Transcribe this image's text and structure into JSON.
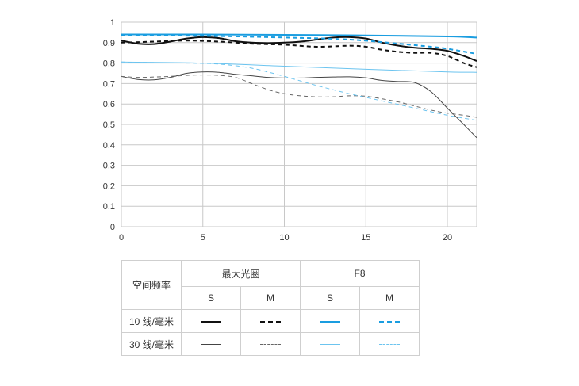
{
  "chart_data": {
    "type": "line",
    "xlim": [
      0,
      21.8
    ],
    "ylim": [
      0,
      1
    ],
    "x_ticks": [
      "0",
      "5",
      "10",
      "15",
      "20"
    ],
    "y_ticks": [
      "0",
      "0.1",
      "0.2",
      "0.3",
      "0.4",
      "0.5",
      "0.6",
      "0.7",
      "0.8",
      "0.9",
      "1"
    ],
    "grid": true,
    "series": [
      {
        "key": "s10_max",
        "color": "#111111",
        "dash": "solid",
        "weight": "thick",
        "points": [
          [
            0,
            0.91
          ],
          [
            1,
            0.895
          ],
          [
            2,
            0.893
          ],
          [
            3,
            0.905
          ],
          [
            4,
            0.92
          ],
          [
            5,
            0.927
          ],
          [
            6,
            0.922
          ],
          [
            7,
            0.907
          ],
          [
            8,
            0.9
          ],
          [
            9,
            0.898
          ],
          [
            10,
            0.9
          ],
          [
            11,
            0.905
          ],
          [
            12,
            0.915
          ],
          [
            13,
            0.925
          ],
          [
            14,
            0.927
          ],
          [
            15,
            0.92
          ],
          [
            16,
            0.9
          ],
          [
            17,
            0.885
          ],
          [
            18,
            0.875
          ],
          [
            19,
            0.87
          ],
          [
            20,
            0.86
          ],
          [
            21,
            0.835
          ],
          [
            21.8,
            0.81
          ]
        ]
      },
      {
        "key": "m10_max",
        "color": "#111111",
        "dash": "dashed",
        "weight": "thick",
        "points": [
          [
            0,
            0.9
          ],
          [
            2,
            0.905
          ],
          [
            4,
            0.91
          ],
          [
            6,
            0.905
          ],
          [
            8,
            0.895
          ],
          [
            10,
            0.89
          ],
          [
            12,
            0.88
          ],
          [
            14,
            0.885
          ],
          [
            15,
            0.88
          ],
          [
            16,
            0.865
          ],
          [
            17,
            0.855
          ],
          [
            18,
            0.85
          ],
          [
            19,
            0.85
          ],
          [
            20,
            0.835
          ],
          [
            21,
            0.8
          ],
          [
            21.8,
            0.78
          ]
        ]
      },
      {
        "key": "s10_f8",
        "color": "#1a9de0",
        "dash": "solid",
        "weight": "thick",
        "points": [
          [
            0,
            0.94
          ],
          [
            5,
            0.94
          ],
          [
            10,
            0.938
          ],
          [
            15,
            0.935
          ],
          [
            20,
            0.93
          ],
          [
            21.8,
            0.925
          ]
        ]
      },
      {
        "key": "m10_f8",
        "color": "#1a9de0",
        "dash": "dashed",
        "weight": "thick",
        "points": [
          [
            0,
            0.935
          ],
          [
            5,
            0.933
          ],
          [
            10,
            0.925
          ],
          [
            14,
            0.915
          ],
          [
            17,
            0.895
          ],
          [
            19,
            0.88
          ],
          [
            20,
            0.87
          ],
          [
            21.8,
            0.845
          ]
        ]
      },
      {
        "key": "s30_max",
        "color": "#444444",
        "dash": "solid",
        "weight": "thin",
        "points": [
          [
            0,
            0.735
          ],
          [
            1,
            0.72
          ],
          [
            2,
            0.718
          ],
          [
            3,
            0.73
          ],
          [
            4,
            0.75
          ],
          [
            5,
            0.757
          ],
          [
            6,
            0.755
          ],
          [
            7,
            0.745
          ],
          [
            8,
            0.738
          ],
          [
            9,
            0.73
          ],
          [
            10,
            0.727
          ],
          [
            11,
            0.727
          ],
          [
            12,
            0.73
          ],
          [
            13,
            0.732
          ],
          [
            14,
            0.733
          ],
          [
            15,
            0.728
          ],
          [
            16,
            0.715
          ],
          [
            17,
            0.71
          ],
          [
            18,
            0.705
          ],
          [
            19,
            0.66
          ],
          [
            20,
            0.58
          ],
          [
            21,
            0.5
          ],
          [
            21.8,
            0.435
          ]
        ]
      },
      {
        "key": "m30_max",
        "color": "#666666",
        "dash": "dashed",
        "weight": "thin",
        "points": [
          [
            0,
            0.735
          ],
          [
            1,
            0.73
          ],
          [
            2,
            0.732
          ],
          [
            3,
            0.735
          ],
          [
            4,
            0.74
          ],
          [
            5,
            0.742
          ],
          [
            6,
            0.74
          ],
          [
            7,
            0.73
          ],
          [
            8,
            0.7
          ],
          [
            9,
            0.67
          ],
          [
            10,
            0.65
          ],
          [
            11,
            0.64
          ],
          [
            12,
            0.635
          ],
          [
            13,
            0.635
          ],
          [
            14,
            0.64
          ],
          [
            15,
            0.638
          ],
          [
            16,
            0.625
          ],
          [
            17,
            0.61
          ],
          [
            18,
            0.59
          ],
          [
            19,
            0.57
          ],
          [
            20,
            0.555
          ],
          [
            21,
            0.545
          ],
          [
            21.8,
            0.535
          ]
        ]
      },
      {
        "key": "s30_f8",
        "color": "#6cc4ef",
        "dash": "solid",
        "weight": "thin",
        "points": [
          [
            0,
            0.805
          ],
          [
            5,
            0.8
          ],
          [
            10,
            0.785
          ],
          [
            15,
            0.77
          ],
          [
            20,
            0.757
          ],
          [
            21.8,
            0.755
          ]
        ]
      },
      {
        "key": "m30_f8",
        "color": "#6cc4ef",
        "dash": "dashed",
        "weight": "thin",
        "points": [
          [
            0,
            0.805
          ],
          [
            4,
            0.8
          ],
          [
            6,
            0.795
          ],
          [
            8,
            0.775
          ],
          [
            10,
            0.735
          ],
          [
            12,
            0.69
          ],
          [
            14,
            0.65
          ],
          [
            16,
            0.615
          ],
          [
            18,
            0.58
          ],
          [
            20,
            0.545
          ],
          [
            21.8,
            0.52
          ]
        ]
      }
    ]
  },
  "legend": {
    "spatial_freq": "空间频率",
    "max_aperture": "最大光圈",
    "f8": "F8",
    "s": "S",
    "m": "M",
    "row_10": "10 线/毫米",
    "row_30": "30 线/毫米"
  }
}
